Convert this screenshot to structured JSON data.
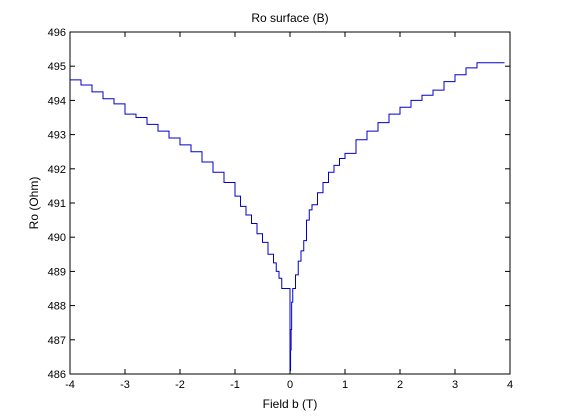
{
  "chart_data": {
    "type": "line",
    "title": "Ro surface (B)",
    "xlabel": "Field b (T)",
    "ylabel": "Ro (Ohm)",
    "xlim": [
      -4,
      4
    ],
    "ylim": [
      486,
      496
    ],
    "xticks": [
      -4,
      -3,
      -2,
      -1,
      0,
      1,
      2,
      3,
      4
    ],
    "yticks": [
      486,
      487,
      488,
      489,
      490,
      491,
      492,
      493,
      494,
      495,
      496
    ],
    "grid": false,
    "line_color": "#0000cc",
    "series": [
      {
        "x": [
          -4.0,
          -3.8,
          -3.6,
          -3.4,
          -3.2,
          -3.0,
          -2.8,
          -2.6,
          -2.4,
          -2.2,
          -2.0,
          -1.8,
          -1.6,
          -1.4,
          -1.2,
          -1.0,
          -0.9,
          -0.8,
          -0.7,
          -0.6,
          -0.5,
          -0.4,
          -0.3,
          -0.25,
          -0.2,
          -0.15,
          -0.1,
          -0.05,
          0.0,
          0.01,
          0.02,
          0.03,
          0.05,
          0.1,
          0.15,
          0.2,
          0.25,
          0.3,
          0.35,
          0.4,
          0.5,
          0.6,
          0.7,
          0.8,
          0.9,
          1.0,
          1.2,
          1.4,
          1.6,
          1.8,
          2.0,
          2.2,
          2.4,
          2.6,
          2.8,
          3.0,
          3.2,
          3.4,
          3.6,
          3.8,
          3.9
        ],
        "y": [
          494.6,
          494.45,
          494.25,
          494.05,
          493.9,
          493.6,
          493.5,
          493.3,
          493.1,
          492.9,
          492.7,
          492.5,
          492.2,
          491.9,
          491.6,
          491.2,
          490.9,
          490.65,
          490.4,
          490.1,
          489.85,
          489.5,
          489.25,
          489.0,
          488.8,
          488.5,
          488.5,
          488.5,
          486.1,
          486.7,
          487.3,
          488.1,
          488.5,
          488.9,
          489.3,
          489.6,
          489.9,
          490.5,
          490.8,
          490.95,
          491.3,
          491.6,
          491.9,
          492.1,
          492.3,
          492.45,
          492.85,
          493.1,
          493.35,
          493.6,
          493.8,
          494.0,
          494.15,
          494.3,
          494.55,
          494.75,
          494.95,
          495.1,
          495.1,
          495.1,
          495.1
        ]
      }
    ]
  }
}
